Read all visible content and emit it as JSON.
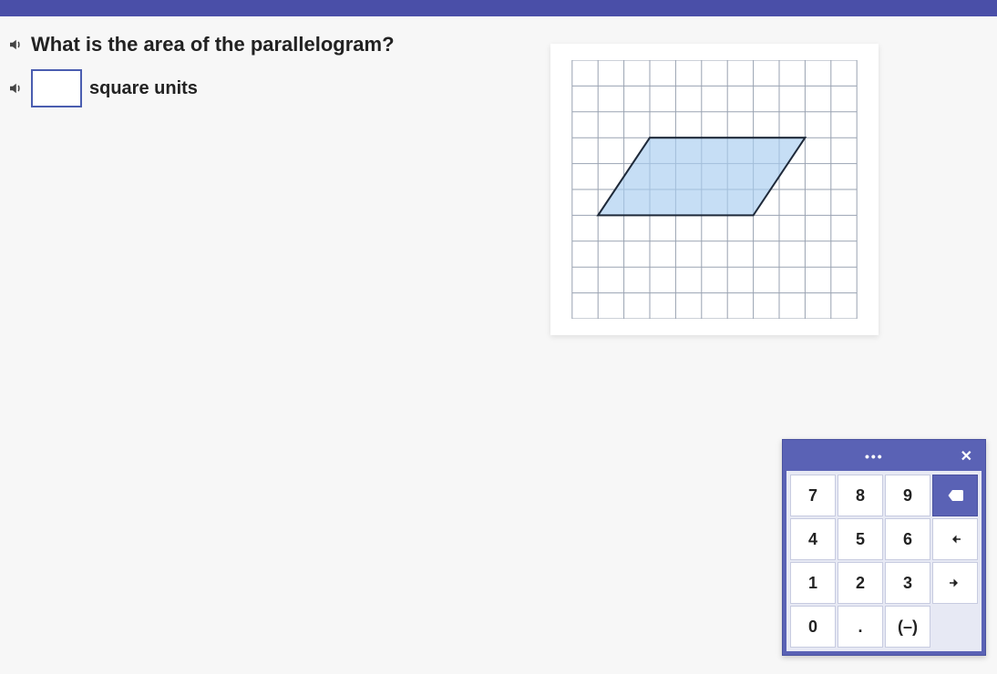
{
  "question": {
    "prompt": "What is the area of the parallelogram?",
    "units_label": "square units",
    "answer_value": ""
  },
  "figure": {
    "type": "parallelogram-on-grid",
    "grid": {
      "cols": 11,
      "rows": 10,
      "cell": 28,
      "line_color": "#9aa3b2",
      "background": "#ffffff"
    },
    "shape": {
      "fill": "#a8cdf0",
      "fill_opacity": 0.65,
      "stroke": "#1f2a3a",
      "stroke_width": 2,
      "vertices_grid": [
        [
          3,
          3
        ],
        [
          9,
          3
        ],
        [
          7,
          6
        ],
        [
          1,
          6
        ]
      ]
    }
  },
  "keypad": {
    "more_label": "•••",
    "close_label": "✕",
    "buttons": [
      {
        "label": "7",
        "name": "key-7",
        "interact": true
      },
      {
        "label": "8",
        "name": "key-8",
        "interact": true
      },
      {
        "label": "9",
        "name": "key-9",
        "interact": true
      },
      {
        "label": "⌫",
        "name": "key-backspace",
        "interact": true,
        "action": true,
        "icon": "backspace"
      },
      {
        "label": "4",
        "name": "key-4",
        "interact": true
      },
      {
        "label": "5",
        "name": "key-5",
        "interact": true
      },
      {
        "label": "6",
        "name": "key-6",
        "interact": true
      },
      {
        "label": "←",
        "name": "key-left",
        "interact": true,
        "icon": "left"
      },
      {
        "label": "1",
        "name": "key-1",
        "interact": true
      },
      {
        "label": "2",
        "name": "key-2",
        "interact": true
      },
      {
        "label": "3",
        "name": "key-3",
        "interact": true
      },
      {
        "label": "→",
        "name": "key-right",
        "interact": true,
        "icon": "right"
      },
      {
        "label": "0",
        "name": "key-0",
        "interact": true
      },
      {
        "label": ".",
        "name": "key-decimal",
        "interact": true
      },
      {
        "label": "(–)",
        "name": "key-negate",
        "interact": true
      },
      {
        "label": "",
        "name": "key-blank",
        "interact": false,
        "blank": true
      }
    ]
  },
  "colors": {
    "brand": "#4a4fa8",
    "keypad_bg": "#5a62b5"
  }
}
